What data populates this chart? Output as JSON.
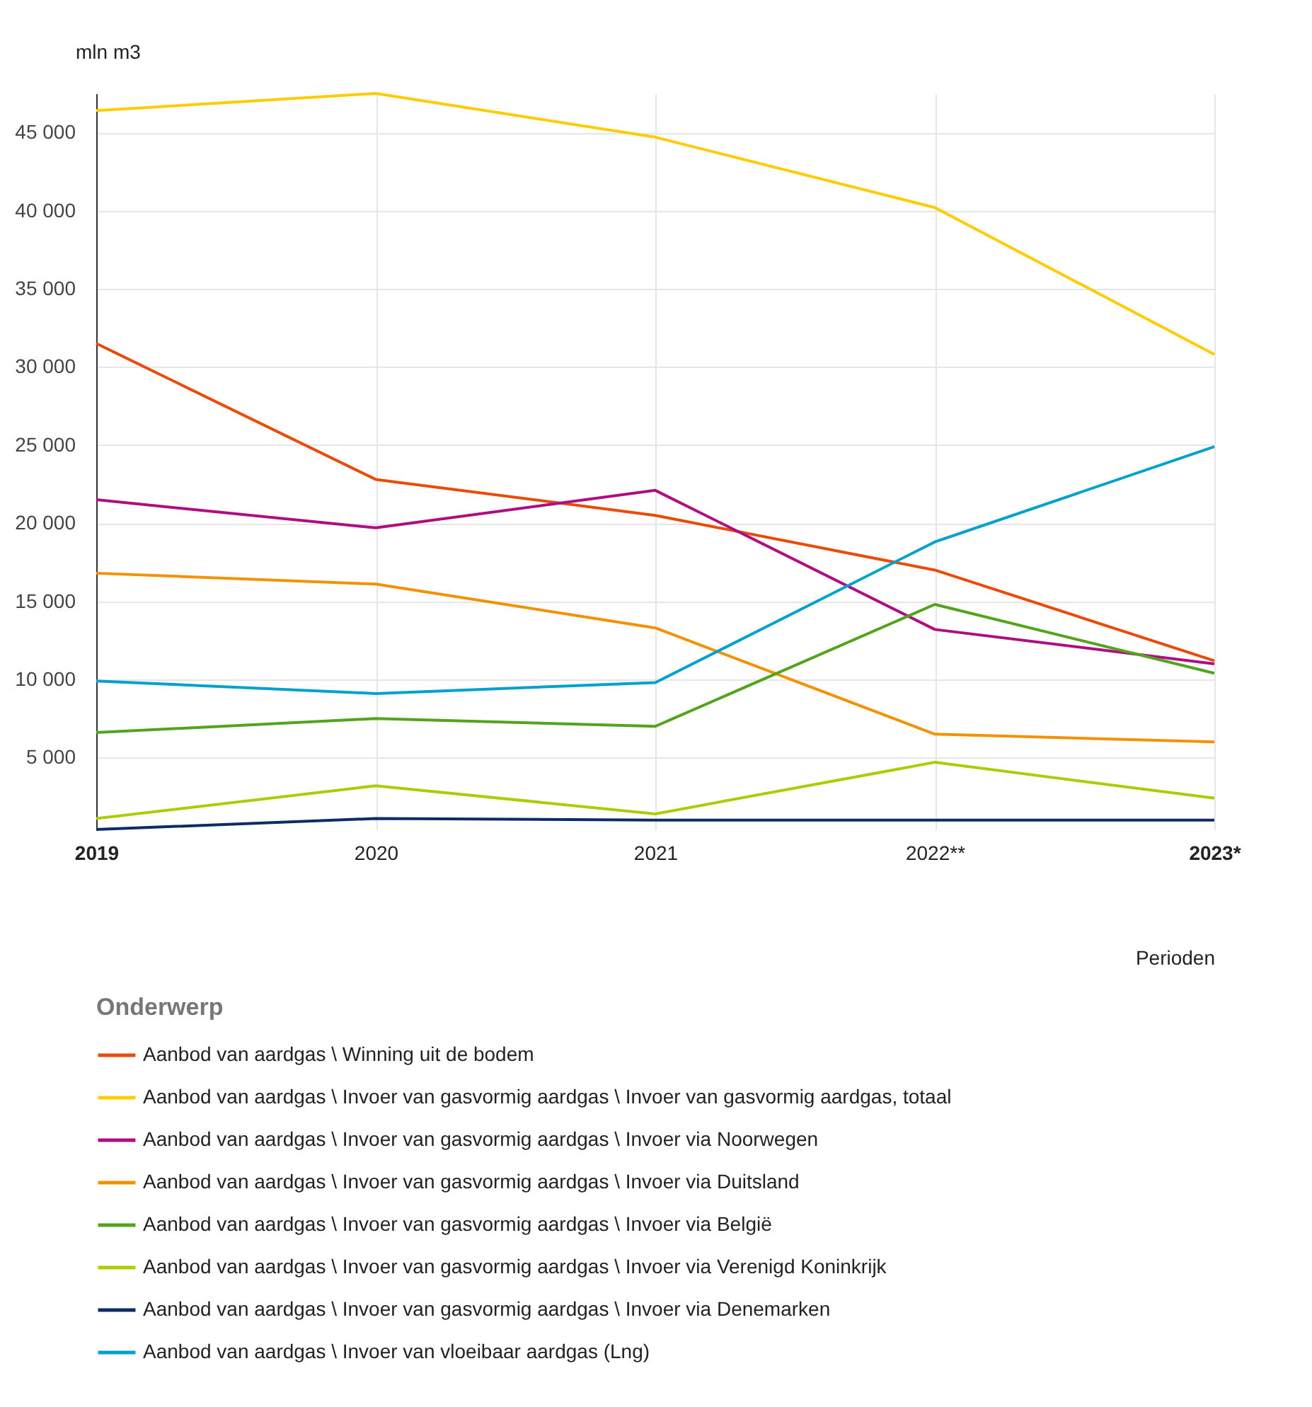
{
  "chart_data": {
    "type": "line",
    "ylabel": "mln m3",
    "xlabel": "Perioden",
    "legend_title": "Onderwerp",
    "categories": [
      "2019",
      "2020",
      "2021",
      "2022**",
      "2023*"
    ],
    "ylim": [
      400,
      47500
    ],
    "yticks": [
      {
        "value": 5000,
        "label": "5 000"
      },
      {
        "value": 10000,
        "label": "10 000"
      },
      {
        "value": 15000,
        "label": "15 000"
      },
      {
        "value": 20000,
        "label": "20 000"
      },
      {
        "value": 25000,
        "label": "25 000"
      },
      {
        "value": 30000,
        "label": "30 000"
      },
      {
        "value": 35000,
        "label": "35 000"
      },
      {
        "value": 40000,
        "label": "40 000"
      },
      {
        "value": 45000,
        "label": "45 000"
      }
    ],
    "grid": true,
    "legend": "bottom",
    "marker": "none",
    "line_style": "solid",
    "series": [
      {
        "name": "Aanbod van aardgas \\ Winning uit de bodem",
        "color": "#e94c0a",
        "values": [
          31500,
          22800,
          20500,
          17000,
          11200
        ]
      },
      {
        "name": "Aanbod van aardgas \\ Invoer van gasvormig aardgas \\ Invoer van gasvormig aardgas, totaal",
        "color": "#ffcc00",
        "values": [
          46400,
          47500,
          44700,
          40200,
          30800
        ]
      },
      {
        "name": "Aanbod van aardgas \\ Invoer van gasvormig aardgas \\ Invoer via Noorwegen",
        "color": "#af0e80",
        "values": [
          21500,
          19700,
          22100,
          13200,
          11000
        ]
      },
      {
        "name": "Aanbod van aardgas \\ Invoer van gasvormig aardgas \\ Invoer via Duitsland",
        "color": "#f39200",
        "values": [
          16800,
          16100,
          13300,
          6500,
          6000
        ]
      },
      {
        "name": "Aanbod van aardgas \\ Invoer van gasvormig aardgas \\ Invoer via België",
        "color": "#53a31d",
        "values": [
          6600,
          7500,
          7000,
          14800,
          10400
        ]
      },
      {
        "name": "Aanbod van aardgas \\ Invoer van gasvormig aardgas \\ Invoer via Verenigd Koninkrijk",
        "color": "#afcb05",
        "values": [
          1100,
          3200,
          1400,
          4700,
          2400
        ]
      },
      {
        "name": "Aanbod van aardgas \\ Invoer van gasvormig aardgas \\ Invoer via Denemarken",
        "color": "#0c2d63",
        "values": [
          400,
          1100,
          1000,
          1000,
          1000
        ]
      },
      {
        "name": "Aanbod van aardgas \\ Invoer van vloeibaar aardgas (Lng)",
        "color": "#00a1cd",
        "values": [
          9900,
          9100,
          9800,
          18800,
          24900
        ]
      }
    ]
  }
}
